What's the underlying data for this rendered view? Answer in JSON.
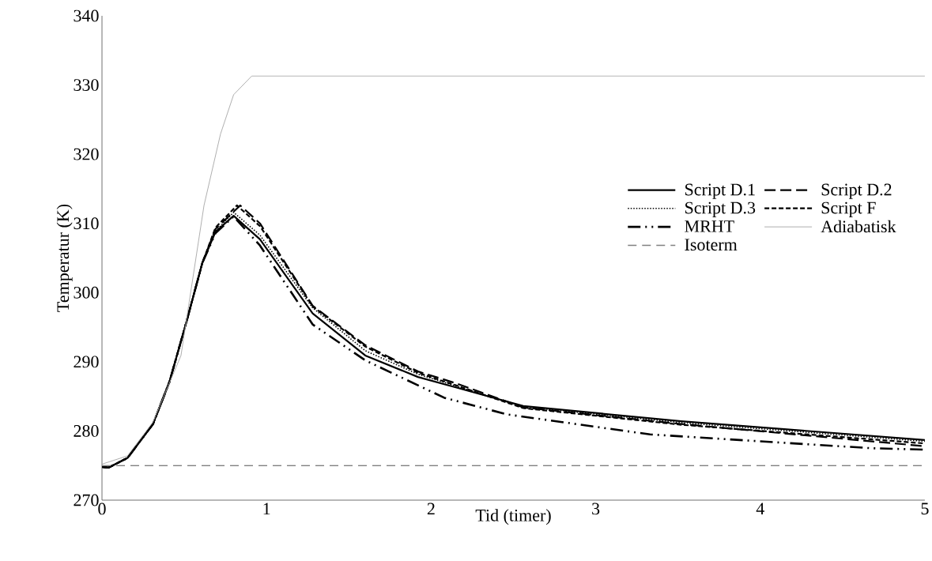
{
  "chart_data": {
    "type": "line",
    "xlabel": "Tid (timer)",
    "ylabel": "Temperatur (K)",
    "xlim": [
      0,
      5
    ],
    "ylim": [
      270,
      340
    ],
    "xticks": [
      0,
      1,
      2,
      3,
      4,
      5
    ],
    "yticks": [
      270,
      280,
      290,
      300,
      310,
      320,
      330,
      340
    ],
    "grid": false,
    "legend": "right",
    "marker": "none",
    "series": [
      {
        "name": "Script D.1",
        "color": "#000000",
        "line_style": "solid",
        "x": [
          0,
          0.04,
          0.155,
          0.31,
          0.41,
          0.51,
          0.61,
          0.69,
          0.8,
          0.96,
          1.28,
          1.6,
          1.92,
          2.15,
          2.56,
          3.52,
          5
        ],
        "values": [
          274.8,
          274.7,
          276.1,
          281.0,
          287.1,
          295.5,
          304.3,
          308.8,
          311.1,
          307.7,
          297.0,
          290.9,
          287.8,
          286.3,
          283.6,
          281.4,
          278.7
        ]
      },
      {
        "name": "Script D.2",
        "color": "#000000",
        "line_style": "long dashed",
        "x": [
          0,
          0.04,
          0.155,
          0.31,
          0.41,
          0.51,
          0.61,
          0.69,
          0.84,
          0.96,
          1.28,
          1.6,
          1.92,
          2.15,
          2.56,
          3.52,
          5
        ],
        "values": [
          274.8,
          274.7,
          276.1,
          281.0,
          287.1,
          295.5,
          304.3,
          309.2,
          312.6,
          310.0,
          298.1,
          292.4,
          288.6,
          286.9,
          283.4,
          281.0,
          277.8
        ]
      },
      {
        "name": "Script D.3",
        "color": "#000000",
        "line_style": "dotted",
        "x": [
          0,
          0.04,
          0.155,
          0.31,
          0.41,
          0.51,
          0.61,
          0.69,
          0.8,
          0.96,
          1.28,
          1.6,
          1.92,
          2.15,
          2.56,
          3.52,
          5
        ],
        "values": [
          274.8,
          274.7,
          276.1,
          281.0,
          287.1,
          295.5,
          304.3,
          308.9,
          311.6,
          308.3,
          297.8,
          291.6,
          288.2,
          286.5,
          283.5,
          281.2,
          278.5
        ]
      },
      {
        "name": "Script F",
        "color": "#000000",
        "line_style": "dashed",
        "x": [
          0,
          0.04,
          0.155,
          0.31,
          0.41,
          0.51,
          0.61,
          0.69,
          0.82,
          0.96,
          1.28,
          1.6,
          1.92,
          2.15,
          2.56,
          3.52,
          5
        ],
        "values": [
          274.8,
          274.7,
          276.1,
          281.0,
          287.1,
          295.5,
          304.3,
          309.4,
          312.6,
          309.6,
          298.0,
          292.2,
          288.4,
          286.6,
          283.3,
          280.9,
          278.2
        ]
      },
      {
        "name": "MRHT",
        "color": "#000000",
        "line_style": "dash dot dot",
        "x": [
          0,
          0.04,
          0.155,
          0.31,
          0.41,
          0.51,
          0.61,
          0.69,
          0.8,
          0.96,
          1.28,
          1.6,
          2.08,
          2.46,
          3.33,
          4.68,
          5
        ],
        "values": [
          274.8,
          274.7,
          276.1,
          281.0,
          287.1,
          295.5,
          304.3,
          308.6,
          311.0,
          306.8,
          295.4,
          290.2,
          284.8,
          282.4,
          279.5,
          277.5,
          277.3
        ]
      },
      {
        "name": "Adiabatisk",
        "color": "#a6a6a6",
        "line_style": "solid",
        "x": [
          0,
          0.155,
          0.31,
          0.48,
          0.62,
          0.72,
          0.8,
          0.91,
          5
        ],
        "values": [
          275.2,
          276.4,
          281.3,
          290.9,
          312.6,
          322.9,
          328.6,
          331.3,
          331.3
        ]
      },
      {
        "name": "Isoterm",
        "color": "#808080",
        "line_style": "dashed",
        "x": [
          0,
          5
        ],
        "values": [
          275.0,
          275.0
        ]
      }
    ]
  }
}
